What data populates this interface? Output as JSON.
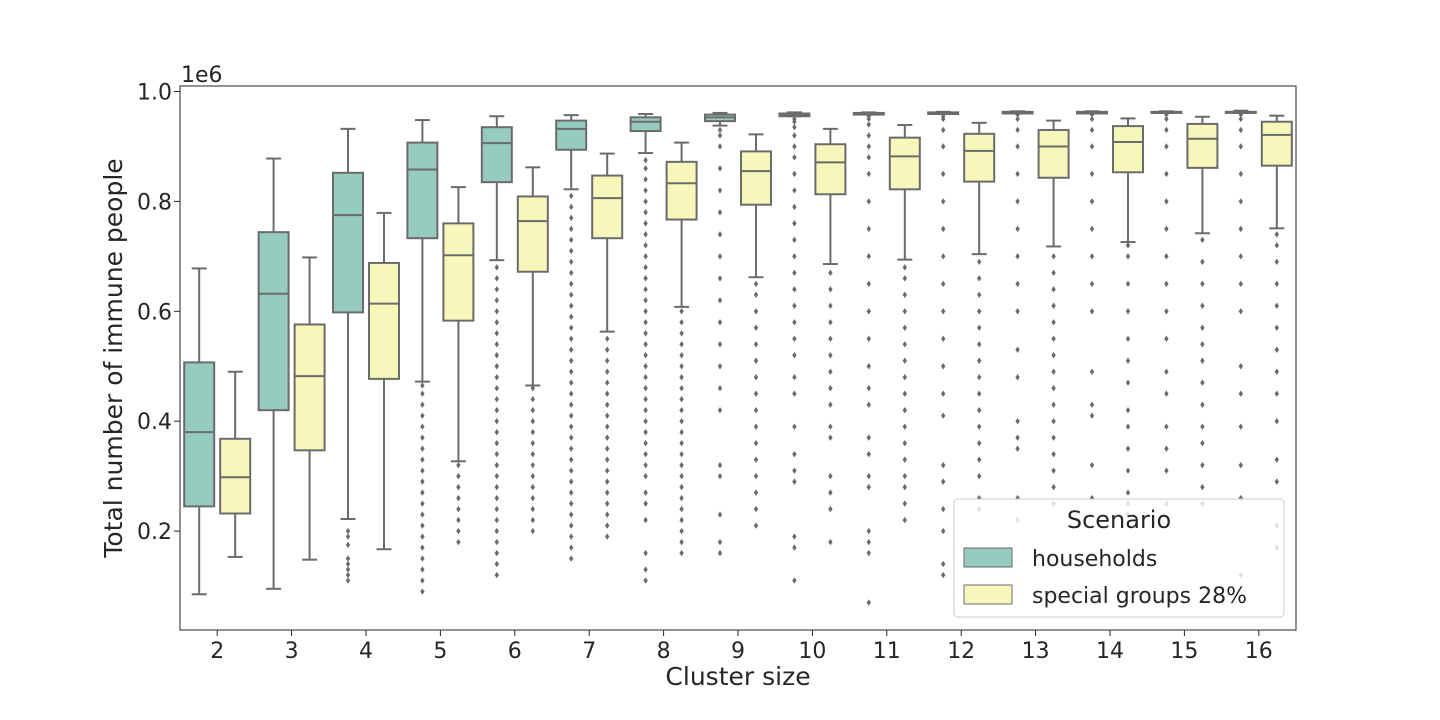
{
  "chart_data": {
    "type": "boxplot",
    "title": "",
    "xlabel": "Cluster size",
    "ylabel": "Total number of immune people",
    "y_scale_label": "1e6",
    "ylim": [
      0.02,
      1.01
    ],
    "yticks": [
      "0.2",
      "0.4",
      "0.6",
      "0.8",
      "1.0"
    ],
    "ytick_values": [
      0.2,
      0.4,
      0.6,
      0.8,
      1.0
    ],
    "categories": [
      "2",
      "3",
      "4",
      "5",
      "6",
      "7",
      "8",
      "9",
      "10",
      "11",
      "12",
      "13",
      "14",
      "15",
      "16"
    ],
    "grid": false,
    "legend": {
      "title": "Scenario",
      "placement": "lower-right"
    },
    "colors": {
      "households": "#96cbc0",
      "special_groups": "#f7f7bb",
      "line": "#6b6b6b"
    },
    "series": [
      {
        "name": "households",
        "boxes": [
          {
            "whislo": 0.085,
            "q1": 0.245,
            "med": 0.38,
            "q3": 0.507,
            "whishi": 0.678,
            "fliers": []
          },
          {
            "whislo": 0.095,
            "q1": 0.42,
            "med": 0.632,
            "q3": 0.744,
            "whishi": 0.878,
            "fliers": []
          },
          {
            "whislo": 0.222,
            "q1": 0.598,
            "med": 0.775,
            "q3": 0.852,
            "whishi": 0.932,
            "fliers": [
              0.11,
              0.12,
              0.13,
              0.14,
              0.15,
              0.175,
              0.19,
              0.2
            ]
          },
          {
            "whislo": 0.472,
            "q1": 0.733,
            "med": 0.858,
            "q3": 0.907,
            "whishi": 0.948,
            "fliers": [
              0.09,
              0.11,
              0.13,
              0.15,
              0.17,
              0.19,
              0.21,
              0.23,
              0.25,
              0.27,
              0.29,
              0.31,
              0.33,
              0.35,
              0.37,
              0.39,
              0.41,
              0.43,
              0.45,
              0.465
            ]
          },
          {
            "whislo": 0.693,
            "q1": 0.835,
            "med": 0.906,
            "q3": 0.935,
            "whishi": 0.955,
            "fliers": [
              0.12,
              0.14,
              0.16,
              0.18,
              0.2,
              0.22,
              0.24,
              0.26,
              0.28,
              0.3,
              0.32,
              0.34,
              0.36,
              0.38,
              0.4,
              0.42,
              0.44,
              0.46,
              0.48,
              0.5,
              0.52,
              0.54,
              0.56,
              0.58,
              0.6,
              0.62,
              0.64,
              0.66,
              0.68
            ]
          },
          {
            "whislo": 0.822,
            "q1": 0.894,
            "med": 0.932,
            "q3": 0.947,
            "whishi": 0.957,
            "fliers": [
              0.15,
              0.17,
              0.19,
              0.21,
              0.23,
              0.25,
              0.27,
              0.29,
              0.31,
              0.33,
              0.35,
              0.37,
              0.39,
              0.41,
              0.43,
              0.45,
              0.47,
              0.49,
              0.51,
              0.53,
              0.55,
              0.57,
              0.59,
              0.61,
              0.63,
              0.65,
              0.67,
              0.69,
              0.71,
              0.73,
              0.75,
              0.77,
              0.79,
              0.81
            ]
          },
          {
            "whislo": 0.888,
            "q1": 0.928,
            "med": 0.945,
            "q3": 0.953,
            "whishi": 0.959,
            "fliers": [
              0.11,
              0.13,
              0.16,
              0.22,
              0.25,
              0.27,
              0.3,
              0.32,
              0.34,
              0.36,
              0.38,
              0.4,
              0.42,
              0.44,
              0.46,
              0.48,
              0.5,
              0.52,
              0.54,
              0.56,
              0.58,
              0.6,
              0.62,
              0.64,
              0.66,
              0.68,
              0.7,
              0.72,
              0.74,
              0.76,
              0.78,
              0.8,
              0.82,
              0.84,
              0.86,
              0.875
            ]
          },
          {
            "whislo": 0.938,
            "q1": 0.946,
            "med": 0.953,
            "q3": 0.958,
            "whishi": 0.961,
            "fliers": [
              0.16,
              0.18,
              0.23,
              0.3,
              0.32,
              0.42,
              0.46,
              0.5,
              0.54,
              0.58,
              0.62,
              0.66,
              0.7,
              0.74,
              0.78,
              0.82,
              0.86,
              0.9,
              0.92,
              0.93
            ]
          },
          {
            "whislo": 0.955,
            "q1": 0.955,
            "med": 0.957,
            "q3": 0.96,
            "whishi": 0.962,
            "fliers": [
              0.11,
              0.17,
              0.19,
              0.29,
              0.31,
              0.34,
              0.39,
              0.45,
              0.48,
              0.52,
              0.55,
              0.58,
              0.61,
              0.64,
              0.67,
              0.7,
              0.73,
              0.76,
              0.79,
              0.82,
              0.85,
              0.88,
              0.9,
              0.92,
              0.935,
              0.945,
              0.95
            ]
          },
          {
            "whislo": 0.958,
            "q1": 0.958,
            "med": 0.96,
            "q3": 0.961,
            "whishi": 0.962,
            "fliers": [
              0.07,
              0.16,
              0.18,
              0.2,
              0.28,
              0.3,
              0.34,
              0.37,
              0.43,
              0.46,
              0.5,
              0.55,
              0.6,
              0.65,
              0.7,
              0.75,
              0.8,
              0.85,
              0.88,
              0.9,
              0.92,
              0.94,
              0.95,
              0.955
            ]
          },
          {
            "whislo": 0.959,
            "q1": 0.959,
            "med": 0.961,
            "q3": 0.962,
            "whishi": 0.963,
            "fliers": [
              0.12,
              0.14,
              0.2,
              0.24,
              0.29,
              0.32,
              0.41,
              0.45,
              0.5,
              0.55,
              0.6,
              0.65,
              0.7,
              0.75,
              0.8,
              0.85,
              0.9,
              0.93,
              0.95,
              0.955
            ]
          },
          {
            "whislo": 0.96,
            "q1": 0.96,
            "med": 0.962,
            "q3": 0.963,
            "whishi": 0.964,
            "fliers": [
              0.22,
              0.26,
              0.35,
              0.37,
              0.4,
              0.48,
              0.53,
              0.6,
              0.65,
              0.7,
              0.75,
              0.8,
              0.85,
              0.9,
              0.93,
              0.95,
              0.958
            ]
          },
          {
            "whislo": 0.96,
            "q1": 0.96,
            "med": 0.962,
            "q3": 0.963,
            "whishi": 0.964,
            "fliers": [
              0.26,
              0.32,
              0.41,
              0.43,
              0.49,
              0.6,
              0.65,
              0.7,
              0.75,
              0.8,
              0.85,
              0.9,
              0.93,
              0.95,
              0.958
            ]
          },
          {
            "whislo": 0.961,
            "q1": 0.961,
            "med": 0.962,
            "q3": 0.963,
            "whishi": 0.964,
            "fliers": [
              0.25,
              0.31,
              0.35,
              0.39,
              0.45,
              0.49,
              0.55,
              0.6,
              0.65,
              0.7,
              0.75,
              0.8,
              0.85,
              0.9,
              0.93,
              0.95,
              0.958
            ]
          },
          {
            "whislo": 0.961,
            "q1": 0.961,
            "med": 0.962,
            "q3": 0.963,
            "whishi": 0.965,
            "fliers": [
              0.12,
              0.26,
              0.32,
              0.39,
              0.45,
              0.5,
              0.6,
              0.65,
              0.7,
              0.75,
              0.8,
              0.85,
              0.9,
              0.93,
              0.95,
              0.958
            ]
          }
        ]
      },
      {
        "name": "special groups 28%",
        "boxes": [
          {
            "whislo": 0.153,
            "q1": 0.232,
            "med": 0.298,
            "q3": 0.368,
            "whishi": 0.49,
            "fliers": []
          },
          {
            "whislo": 0.148,
            "q1": 0.347,
            "med": 0.482,
            "q3": 0.576,
            "whishi": 0.698,
            "fliers": []
          },
          {
            "whislo": 0.167,
            "q1": 0.477,
            "med": 0.614,
            "q3": 0.688,
            "whishi": 0.779,
            "fliers": []
          },
          {
            "whislo": 0.327,
            "q1": 0.583,
            "med": 0.702,
            "q3": 0.76,
            "whishi": 0.826,
            "fliers": [
              0.18,
              0.2,
              0.22,
              0.24,
              0.26,
              0.28,
              0.3,
              0.32
            ]
          },
          {
            "whislo": 0.465,
            "q1": 0.672,
            "med": 0.764,
            "q3": 0.809,
            "whishi": 0.862,
            "fliers": [
              0.2,
              0.22,
              0.24,
              0.26,
              0.28,
              0.3,
              0.32,
              0.34,
              0.36,
              0.38,
              0.4,
              0.42,
              0.44,
              0.46
            ]
          },
          {
            "whislo": 0.563,
            "q1": 0.733,
            "med": 0.806,
            "q3": 0.847,
            "whishi": 0.887,
            "fliers": [
              0.19,
              0.21,
              0.23,
              0.25,
              0.27,
              0.29,
              0.31,
              0.33,
              0.35,
              0.37,
              0.39,
              0.41,
              0.43,
              0.45,
              0.47,
              0.49,
              0.51,
              0.53,
              0.55
            ]
          },
          {
            "whislo": 0.608,
            "q1": 0.767,
            "med": 0.833,
            "q3": 0.872,
            "whishi": 0.907,
            "fliers": [
              0.16,
              0.18,
              0.2,
              0.22,
              0.24,
              0.26,
              0.28,
              0.3,
              0.32,
              0.34,
              0.36,
              0.38,
              0.4,
              0.42,
              0.44,
              0.46,
              0.48,
              0.5,
              0.52,
              0.54,
              0.56,
              0.58,
              0.6
            ]
          },
          {
            "whislo": 0.662,
            "q1": 0.794,
            "med": 0.855,
            "q3": 0.891,
            "whishi": 0.922,
            "fliers": [
              0.21,
              0.24,
              0.27,
              0.3,
              0.33,
              0.36,
              0.39,
              0.42,
              0.45,
              0.48,
              0.51,
              0.54,
              0.57,
              0.6,
              0.63,
              0.65
            ]
          },
          {
            "whislo": 0.686,
            "q1": 0.813,
            "med": 0.871,
            "q3": 0.904,
            "whishi": 0.932,
            "fliers": [
              0.18,
              0.24,
              0.27,
              0.3,
              0.37,
              0.39,
              0.43,
              0.46,
              0.49,
              0.52,
              0.55,
              0.58,
              0.61,
              0.64,
              0.67
            ]
          },
          {
            "whislo": 0.694,
            "q1": 0.822,
            "med": 0.882,
            "q3": 0.916,
            "whishi": 0.939,
            "fliers": [
              0.22,
              0.25,
              0.28,
              0.3,
              0.33,
              0.36,
              0.39,
              0.42,
              0.45,
              0.48,
              0.51,
              0.54,
              0.57,
              0.6,
              0.63,
              0.66,
              0.68
            ]
          },
          {
            "whislo": 0.704,
            "q1": 0.836,
            "med": 0.892,
            "q3": 0.923,
            "whishi": 0.943,
            "fliers": [
              0.24,
              0.26,
              0.3,
              0.33,
              0.36,
              0.39,
              0.42,
              0.45,
              0.48,
              0.51,
              0.54,
              0.57,
              0.6,
              0.63,
              0.66,
              0.69
            ]
          },
          {
            "whislo": 0.718,
            "q1": 0.843,
            "med": 0.9,
            "q3": 0.93,
            "whishi": 0.947,
            "fliers": [
              0.25,
              0.28,
              0.31,
              0.34,
              0.37,
              0.4,
              0.43,
              0.46,
              0.49,
              0.52,
              0.55,
              0.58,
              0.61,
              0.64,
              0.67,
              0.7
            ]
          },
          {
            "whislo": 0.726,
            "q1": 0.853,
            "med": 0.908,
            "q3": 0.937,
            "whishi": 0.951,
            "fliers": [
              0.23,
              0.25,
              0.27,
              0.31,
              0.35,
              0.39,
              0.42,
              0.47,
              0.51,
              0.55,
              0.6,
              0.65,
              0.7,
              0.72
            ]
          },
          {
            "whislo": 0.742,
            "q1": 0.861,
            "med": 0.914,
            "q3": 0.941,
            "whishi": 0.954,
            "fliers": [
              0.25,
              0.28,
              0.32,
              0.36,
              0.39,
              0.43,
              0.47,
              0.51,
              0.54,
              0.57,
              0.61,
              0.65,
              0.69,
              0.73
            ]
          },
          {
            "whislo": 0.751,
            "q1": 0.865,
            "med": 0.921,
            "q3": 0.945,
            "whishi": 0.956,
            "fliers": [
              0.17,
              0.21,
              0.29,
              0.33,
              0.4,
              0.45,
              0.49,
              0.53,
              0.57,
              0.61,
              0.65,
              0.69,
              0.72,
              0.74
            ]
          }
        ]
      }
    ]
  }
}
